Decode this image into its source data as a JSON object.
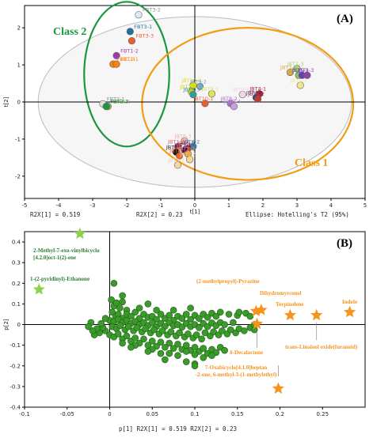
{
  "panel_a": {
    "tag": "(A)",
    "footer": {
      "r2x1": "R2X[1] = 0.519",
      "r2x2": "R2X[2] = 0.23",
      "ellipse": "Ellipse: Hotelling's T2 (95%)"
    },
    "class_labels": [
      {
        "text": "Class 2",
        "color": "#1a9641"
      },
      {
        "text": "Class 1",
        "color": "#f39c12"
      }
    ]
  },
  "panel_b": {
    "tag": "(B)",
    "footer": "p[1]  R2X[1] = 0.519  R2X[2] = 0.23"
  },
  "chart_data": [
    {
      "type": "scatter",
      "title": "",
      "xlabel": "t[1]",
      "ylabel": "t[2]",
      "xlim": [
        -5,
        5
      ],
      "ylim": [
        -2.6,
        2.6
      ],
      "xticks": [
        -5,
        -4,
        -3,
        -2,
        -1,
        0,
        1,
        2,
        3,
        4,
        5
      ],
      "yticks": [
        -2,
        -1,
        0,
        1,
        2
      ],
      "grid": false,
      "ellipses": [
        {
          "name": "Hotelling's T2 (95%)",
          "cx": 0,
          "cy": 0,
          "rx": 4.6,
          "ry": 2.3,
          "color": "#bbbbbb"
        },
        {
          "name": "Class 2",
          "cx": -2.0,
          "cy": 0.75,
          "rx": 1.25,
          "ry": 1.95,
          "color": "#1a9641"
        },
        {
          "name": "Class 1",
          "cx": 1.55,
          "cy": -0.05,
          "rx": 3.1,
          "ry": 2.05,
          "color": "#f39c12"
        }
      ],
      "points": [
        {
          "label": "FBT3-2",
          "x": -1.65,
          "y": 2.35,
          "color": "#dce9f7"
        },
        {
          "label": "FBT3-1",
          "x": -1.9,
          "y": 1.9,
          "color": "#1f6f9f"
        },
        {
          "label": "FBT3-3",
          "x": -1.85,
          "y": 1.65,
          "color": "#e8602c"
        },
        {
          "label": "FBT1-2",
          "x": -2.3,
          "y": 1.25,
          "color": "#9b3ab0"
        },
        {
          "label": "FBT1-3",
          "x": -2.4,
          "y": 1.02,
          "color": "#ff7f0e"
        },
        {
          "label": "FBT1-1",
          "x": -2.3,
          "y": 1.02,
          "color": "#ff7f0e"
        },
        {
          "label": "FBT2-1",
          "x": -2.7,
          "y": -0.05,
          "color": "#e0e0e0"
        },
        {
          "label": "FBT2-2",
          "x": -2.55,
          "y": -0.12,
          "color": "#8fbc5a"
        },
        {
          "label": "FBT2-3",
          "x": -2.6,
          "y": -0.12,
          "color": "#1a9641"
        },
        {
          "label": "JBT10-2",
          "x": -0.05,
          "y": 0.45,
          "color": "#e4e010"
        },
        {
          "label": "JBT9-2",
          "x": 0.15,
          "y": 0.42,
          "color": "#6fa3d0"
        },
        {
          "label": "JBT10-3",
          "x": -0.1,
          "y": 0.28,
          "color": "#d2d21a"
        },
        {
          "label": "JBT9-3",
          "x": -0.05,
          "y": 0.2,
          "color": "#2aa198"
        },
        {
          "label": "JBT9-1",
          "x": 0.5,
          "y": 0.22,
          "color": "#e0e060"
        },
        {
          "label": "JBT10-1",
          "x": 0.3,
          "y": -0.04,
          "color": "#e8602c"
        },
        {
          "label": "JBT8-1",
          "x": 1.4,
          "y": 0.2,
          "color": "#f6d4e6"
        },
        {
          "label": "JBT8-2",
          "x": 1.05,
          "y": -0.04,
          "color": "#a66dc0"
        },
        {
          "label": "JBT8-3",
          "x": 1.15,
          "y": -0.12,
          "color": "#c9a0dc"
        },
        {
          "label": "JBT7-3",
          "x": 3.0,
          "y": 0.9,
          "color": "#a6d96a"
        },
        {
          "label": "JBT7-1",
          "x": 2.8,
          "y": 0.8,
          "color": "#e8a33d"
        },
        {
          "label": "JBT7-2",
          "x": 3.05,
          "y": 0.72,
          "color": "#7bc96f"
        },
        {
          "label": "JBT5-2",
          "x": 3.15,
          "y": 0.72,
          "color": "#6a3db3"
        },
        {
          "label": "JBT5-3",
          "x": 3.3,
          "y": 0.72,
          "color": "#8e44ad"
        },
        {
          "label": "JBT5-1",
          "x": 3.1,
          "y": 0.45,
          "color": "#f0e68c"
        },
        {
          "label": "JBT4-1",
          "x": 1.9,
          "y": 0.22,
          "color": "#b2182b"
        },
        {
          "label": "JBT4-3",
          "x": 1.8,
          "y": 0.12,
          "color": "#2c3e91"
        },
        {
          "label": "JBT4-2",
          "x": 1.85,
          "y": 0.08,
          "color": "#c0392b"
        },
        {
          "label": "JBT6-3",
          "x": -0.3,
          "y": -1.05,
          "color": "#f6b2b2"
        },
        {
          "label": "JBT1-2",
          "x": -0.5,
          "y": -1.2,
          "color": "#d46a6a"
        },
        {
          "label": "JBT6-2",
          "x": -0.05,
          "y": -1.2,
          "color": "#2c7fb8"
        },
        {
          "label": "JBT6-1",
          "x": -0.2,
          "y": -1.25,
          "color": "#c0392b"
        },
        {
          "label": "JBT2-1",
          "x": -0.3,
          "y": -1.3,
          "color": "#4b0082"
        },
        {
          "label": "JBT1-1",
          "x": -0.55,
          "y": -1.35,
          "color": "#1a1a1a"
        },
        {
          "label": "JBT2-2",
          "x": -0.2,
          "y": -1.4,
          "color": "#e89f3c"
        },
        {
          "label": "JBT3-1",
          "x": -0.45,
          "y": -1.45,
          "color": "#e8602c"
        },
        {
          "label": "JBT2-3",
          "x": -0.15,
          "y": -1.55,
          "color": "#f5d98e"
        },
        {
          "label": "JBT3-3",
          "x": -0.5,
          "y": -1.7,
          "color": "#f6d5a5"
        }
      ]
    },
    {
      "type": "scatter",
      "title": "",
      "xlabel": "p[1]",
      "ylabel": "p[2]",
      "xlim": [
        -0.1,
        0.3
      ],
      "ylim": [
        -0.4,
        0.45
      ],
      "xticks": [
        -0.1,
        -0.05,
        0,
        0.05,
        0.1,
        0.15,
        0.2,
        0.25
      ],
      "yticks": [
        -0.4,
        -0.3,
        -0.2,
        -0.1,
        0,
        0.1,
        0.2,
        0.3,
        0.4
      ],
      "grid": false,
      "annotated_points": [
        {
          "label": "2-Methyl-7-exo-vinylbicyclo [4.2.0]oct-1(2)-ene",
          "lines": [
            "2-Methyl-7-exo-vinylbicyclo",
            "[4.2.0]oct-1(2)-ene"
          ],
          "x": -0.035,
          "y": 0.44,
          "marker": "star",
          "color": "#8fd14f"
        },
        {
          "label": "1-(2-pyridinyl)-Ethanone",
          "lines": [
            "1-(2-pyridinyl)-Ethanone"
          ],
          "x": -0.083,
          "y": 0.17,
          "marker": "star",
          "color": "#8fd14f"
        },
        {
          "label": "(2-methylpropyl)-Pyrazine",
          "lines": [
            "(2-methylpropyl)-Pyrazine"
          ],
          "x": 0.172,
          "y": 0.065,
          "marker": "star",
          "color": "#f7941d"
        },
        {
          "label": "Dihydromyrcenol",
          "lines": [
            "Dihydromyrcenol"
          ],
          "x": 0.178,
          "y": 0.07,
          "marker": "star",
          "color": "#f7941d"
        },
        {
          "label": "Terpinolene",
          "lines": [
            "Terpinolene"
          ],
          "x": 0.212,
          "y": 0.045,
          "marker": "star",
          "color": "#f7941d"
        },
        {
          "label": "Indole",
          "lines": [
            "Indole"
          ],
          "x": 0.282,
          "y": 0.06,
          "marker": "star",
          "color": "#f7941d"
        },
        {
          "label": "trans-Linalool oxide(furanoid)",
          "lines": [
            "trans-Linalool oxide(furanoid)"
          ],
          "x": 0.243,
          "y": 0.045,
          "marker": "star",
          "color": "#f7941d"
        },
        {
          "label": "δ-Decalactone",
          "lines": [
            "δ-Decalactone"
          ],
          "x": 0.173,
          "y": 0.003,
          "marker": "star",
          "color": "#f7941d"
        },
        {
          "label": "7-Oxabicyclo[4.1.0]heptan -2-one, 6-methyl-3-(1-methylethyl)",
          "lines": [
            "7-Oxabicyclo[4.1.0]heptan",
            "-2-one, 6-methyl-3-(1-methylethyl)"
          ],
          "x": 0.198,
          "y": -0.31,
          "marker": "star",
          "color": "#f7941d"
        }
      ],
      "cluster_points": [
        [
          0.002,
          0.12
        ],
        [
          0.005,
          0.09
        ],
        [
          0.008,
          0.105
        ],
        [
          0.012,
          0.08
        ],
        [
          0.015,
          0.11
        ],
        [
          0.02,
          0.07
        ],
        [
          0.003,
          0.06
        ],
        [
          0.007,
          0.04
        ],
        [
          0.01,
          0.05
        ],
        [
          0.015,
          0.03
        ],
        [
          0.02,
          0.05
        ],
        [
          0.025,
          0.04
        ],
        [
          0.03,
          0.06
        ],
        [
          0.035,
          0.03
        ],
        [
          0.04,
          0.05
        ],
        [
          0.045,
          0.035
        ],
        [
          0.05,
          0.04
        ],
        [
          0.055,
          0.025
        ],
        [
          0.06,
          0.05
        ],
        [
          0.065,
          0.03
        ],
        [
          0.07,
          0.045
        ],
        [
          0.075,
          0.02
        ],
        [
          0.08,
          0.04
        ],
        [
          0.085,
          0.03
        ],
        [
          0.09,
          0.05
        ],
        [
          0.095,
          0.025
        ],
        [
          0.1,
          0.045
        ],
        [
          0.105,
          0.03
        ],
        [
          0.11,
          0.05
        ],
        [
          0.115,
          0.035
        ],
        [
          0.12,
          0.055
        ],
        [
          0.125,
          0.04
        ],
        [
          0.13,
          0.06
        ],
        [
          0.14,
          0.05
        ],
        [
          0.15,
          0.045
        ],
        [
          0.16,
          0.055
        ],
        [
          0.0,
          0.02
        ],
        [
          0.005,
          0.015
        ],
        [
          0.01,
          0.025
        ],
        [
          0.015,
          0.01
        ],
        [
          0.02,
          0.02
        ],
        [
          0.025,
          0.005
        ],
        [
          0.03,
          0.015
        ],
        [
          0.035,
          0.0
        ],
        [
          0.04,
          0.01
        ],
        [
          0.045,
          -0.005
        ],
        [
          0.05,
          0.008
        ],
        [
          0.055,
          -0.01
        ],
        [
          0.06,
          0.005
        ],
        [
          0.065,
          -0.008
        ],
        [
          0.07,
          0.01
        ],
        [
          0.075,
          -0.005
        ],
        [
          0.08,
          0.0
        ],
        [
          0.085,
          -0.012
        ],
        [
          0.09,
          0.005
        ],
        [
          0.095,
          -0.01
        ],
        [
          0.1,
          0.0
        ],
        [
          0.105,
          -0.015
        ],
        [
          0.11,
          0.005
        ],
        [
          0.115,
          -0.01
        ],
        [
          0.12,
          0.008
        ],
        [
          0.125,
          -0.005
        ],
        [
          0.13,
          0.01
        ],
        [
          0.135,
          0.0
        ],
        [
          0.145,
          0.01
        ],
        [
          0.003,
          -0.01
        ],
        [
          0.008,
          -0.02
        ],
        [
          0.012,
          -0.005
        ],
        [
          0.018,
          -0.025
        ],
        [
          0.022,
          -0.01
        ],
        [
          0.028,
          -0.03
        ],
        [
          0.032,
          -0.015
        ],
        [
          0.038,
          -0.035
        ],
        [
          0.042,
          -0.02
        ],
        [
          0.048,
          -0.04
        ],
        [
          0.052,
          -0.025
        ],
        [
          0.058,
          -0.045
        ],
        [
          0.062,
          -0.03
        ],
        [
          0.068,
          -0.05
        ],
        [
          0.072,
          -0.035
        ],
        [
          0.078,
          -0.055
        ],
        [
          0.082,
          -0.04
        ],
        [
          0.088,
          -0.06
        ],
        [
          0.092,
          -0.045
        ],
        [
          0.098,
          -0.065
        ],
        [
          0.102,
          -0.05
        ],
        [
          0.108,
          -0.07
        ],
        [
          0.112,
          -0.04
        ],
        [
          0.118,
          -0.055
        ],
        [
          0.122,
          -0.035
        ],
        [
          0.128,
          -0.05
        ],
        [
          0.132,
          -0.03
        ],
        [
          0.138,
          -0.045
        ],
        [
          0.142,
          -0.025
        ],
        [
          0.148,
          -0.04
        ],
        [
          0.152,
          -0.02
        ],
        [
          0.158,
          -0.03
        ],
        [
          0.165,
          -0.015
        ],
        [
          0.17,
          -0.025
        ],
        [
          -0.005,
          -0.03
        ],
        [
          -0.008,
          -0.015
        ],
        [
          -0.012,
          -0.04
        ],
        [
          -0.015,
          -0.02
        ],
        [
          -0.018,
          -0.05
        ],
        [
          -0.02,
          -0.03
        ],
        [
          -0.022,
          0.01
        ],
        [
          -0.025,
          -0.01
        ],
        [
          -0.005,
          0.03
        ],
        [
          -0.01,
          0.005
        ],
        [
          0.0,
          -0.05
        ],
        [
          0.005,
          -0.06
        ],
        [
          0.01,
          -0.045
        ],
        [
          0.015,
          -0.07
        ],
        [
          0.02,
          -0.055
        ],
        [
          0.025,
          -0.08
        ],
        [
          0.03,
          -0.065
        ],
        [
          0.035,
          -0.09
        ],
        [
          0.04,
          -0.07
        ],
        [
          0.045,
          -0.1
        ],
        [
          0.05,
          -0.08
        ],
        [
          0.055,
          -0.105
        ],
        [
          0.06,
          -0.085
        ],
        [
          0.065,
          -0.11
        ],
        [
          0.07,
          -0.09
        ],
        [
          0.075,
          -0.115
        ],
        [
          0.08,
          -0.095
        ],
        [
          0.085,
          -0.12
        ],
        [
          0.09,
          -0.1
        ],
        [
          0.095,
          -0.125
        ],
        [
          0.1,
          -0.11
        ],
        [
          0.105,
          -0.13
        ],
        [
          0.11,
          -0.115
        ],
        [
          0.115,
          -0.14
        ],
        [
          0.12,
          -0.12
        ],
        [
          0.125,
          -0.135
        ],
        [
          0.13,
          -0.11
        ],
        [
          0.135,
          -0.125
        ],
        [
          0.09,
          -0.13
        ],
        [
          0.07,
          -0.14
        ],
        [
          0.05,
          -0.12
        ],
        [
          0.03,
          -0.1
        ],
        [
          0.015,
          -0.09
        ],
        [
          0.045,
          -0.13
        ],
        [
          0.06,
          -0.14
        ],
        [
          0.08,
          -0.15
        ],
        [
          0.1,
          -0.145
        ],
        [
          0.11,
          -0.16
        ],
        [
          0.12,
          -0.15
        ],
        [
          0.065,
          -0.17
        ],
        [
          0.09,
          -0.18
        ],
        [
          0.1,
          -0.19
        ],
        [
          0.1,
          -0.2
        ],
        [
          0.025,
          -0.11
        ],
        [
          0.035,
          0.08
        ],
        [
          0.015,
          0.14
        ],
        [
          0.005,
          0.2
        ],
        [
          0.045,
          0.1
        ],
        [
          0.055,
          0.07
        ],
        [
          0.075,
          0.07
        ],
        [
          0.095,
          0.08
        ],
        [
          0.165,
          0.04
        ],
        [
          0.152,
          0.06
        ],
        [
          0.17,
          0.0
        ]
      ]
    }
  ]
}
